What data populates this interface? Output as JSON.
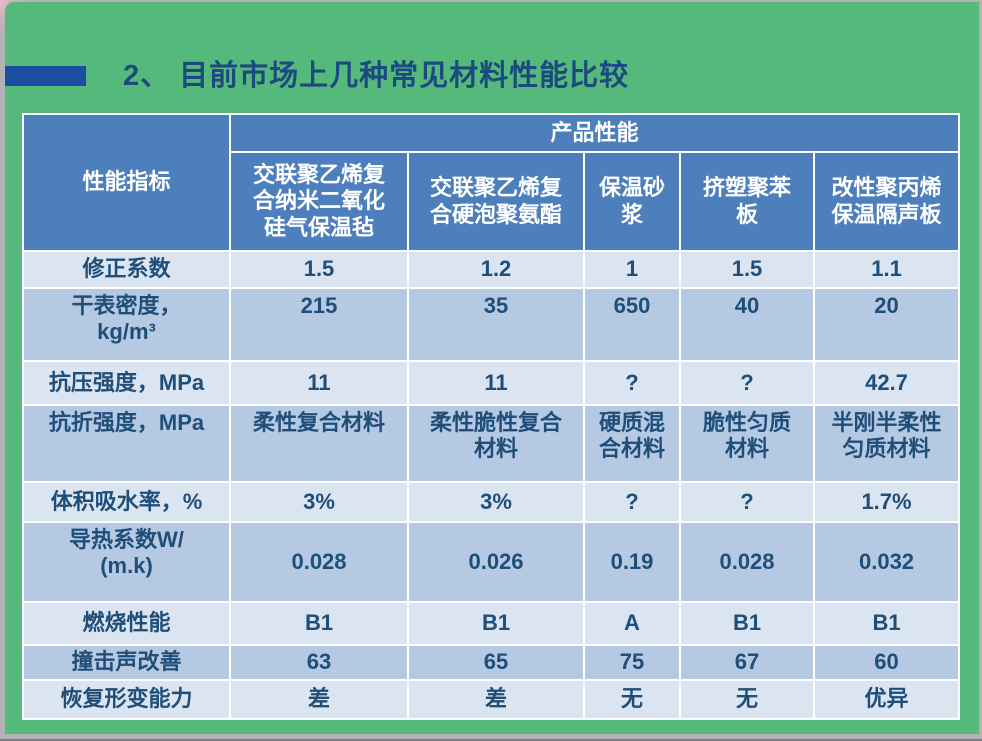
{
  "title": "2、 目前市场上几种常见材料性能比较",
  "colors": {
    "bg-green": "#55b97b",
    "accent-bar": "#1c4fa4",
    "title-blue": "#1c4a80",
    "header-blue": "#4d7fbc",
    "band-light": "#dbe5f1",
    "band-dark": "#b5c9e2",
    "text-blue": "#1f4e79",
    "grid-white": "#ffffff"
  },
  "table": {
    "corner_header": "性能指标",
    "group_header": "产品性能",
    "product_columns": [
      "交联聚乙烯复合纳米二氧化硅气保温毡",
      "交联聚乙烯复合硬泡聚氨酯",
      "保温砂浆",
      "挤塑聚苯板",
      "改性聚丙烯保温隔声板"
    ],
    "rows": [
      {
        "label_lines": [
          "修正系数"
        ],
        "values": [
          "1.5",
          "1.2",
          "1",
          "1.5",
          "1.1"
        ]
      },
      {
        "label_lines": [
          "干表密度，",
          "kg/m³"
        ],
        "values": [
          "215",
          "35",
          "650",
          "40",
          "20"
        ]
      },
      {
        "label_lines": [
          "抗压强度，MPa"
        ],
        "values": [
          "11",
          "11",
          "?",
          "?",
          "42.7"
        ]
      },
      {
        "label_lines": [
          "抗折强度，MPa"
        ],
        "values": [
          "柔性复合材料",
          "柔性脆性复合材料",
          "硬质混合材料",
          "脆性匀质材料",
          "半刚半柔性匀质材料"
        ]
      },
      {
        "label_lines": [
          "体积吸水率，%"
        ],
        "values": [
          "3%",
          "3%",
          "?",
          "?",
          "1.7%"
        ]
      },
      {
        "label_lines": [
          "导热系数W/",
          "(m.k)"
        ],
        "values": [
          "0.028",
          "0.026",
          "0.19",
          "0.028",
          "0.032"
        ]
      },
      {
        "label_lines": [
          "燃烧性能"
        ],
        "values": [
          "B1",
          "B1",
          "A",
          "B1",
          "B1"
        ]
      },
      {
        "label_lines": [
          "撞击声改善"
        ],
        "values": [
          "63",
          "65",
          "75",
          "67",
          "60"
        ]
      },
      {
        "label_lines": [
          "恢复形变能力"
        ],
        "values": [
          "差",
          "差",
          "无",
          "无",
          "优异"
        ]
      }
    ]
  }
}
